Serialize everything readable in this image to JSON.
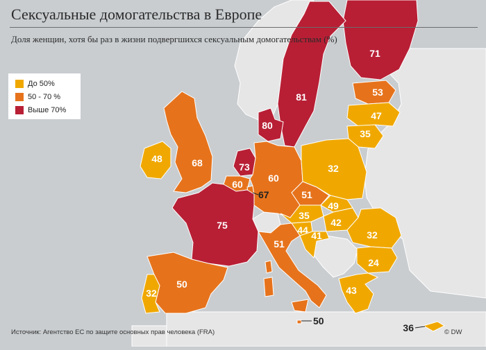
{
  "title": "Сексуальные домогательства в Европе",
  "subtitle": "Доля женщин, хотя бы раз в жизни подвергшихся сексуальным домогательствам (%)",
  "legend": [
    {
      "label": "До 50%",
      "color": "#f0a800"
    },
    {
      "label": "50 - 70 %",
      "color": "#e6731c"
    },
    {
      "label": "Выше 70%",
      "color": "#b81f35"
    }
  ],
  "source": "Источник: Агентство ЕС по защите основных прав человека (FRA)",
  "credit": "© DW",
  "map_data": {
    "countries": [
      {
        "id": "finland",
        "value": "71"
      },
      {
        "id": "sweden",
        "value": "81"
      },
      {
        "id": "denmark",
        "value": "80"
      },
      {
        "id": "estonia",
        "value": "53"
      },
      {
        "id": "latvia",
        "value": "47"
      },
      {
        "id": "lithuania",
        "value": "35"
      },
      {
        "id": "ireland",
        "value": "48"
      },
      {
        "id": "uk",
        "value": "68"
      },
      {
        "id": "netherlands",
        "value": "73"
      },
      {
        "id": "belgium",
        "value": "60"
      },
      {
        "id": "luxembourg",
        "value": "67"
      },
      {
        "id": "germany",
        "value": "60"
      },
      {
        "id": "poland",
        "value": "32"
      },
      {
        "id": "czechia",
        "value": "51"
      },
      {
        "id": "slovakia",
        "value": "49"
      },
      {
        "id": "austria",
        "value": "35"
      },
      {
        "id": "hungary",
        "value": "42"
      },
      {
        "id": "slovenia",
        "value": "44"
      },
      {
        "id": "croatia",
        "value": "41"
      },
      {
        "id": "romania",
        "value": "32"
      },
      {
        "id": "bulgaria",
        "value": "24"
      },
      {
        "id": "france",
        "value": "75"
      },
      {
        "id": "italy",
        "value": "51"
      },
      {
        "id": "spain",
        "value": "50"
      },
      {
        "id": "portugal",
        "value": "32"
      },
      {
        "id": "greece",
        "value": "43"
      },
      {
        "id": "malta",
        "value": "50"
      },
      {
        "id": "cyprus",
        "value": "36"
      }
    ]
  }
}
